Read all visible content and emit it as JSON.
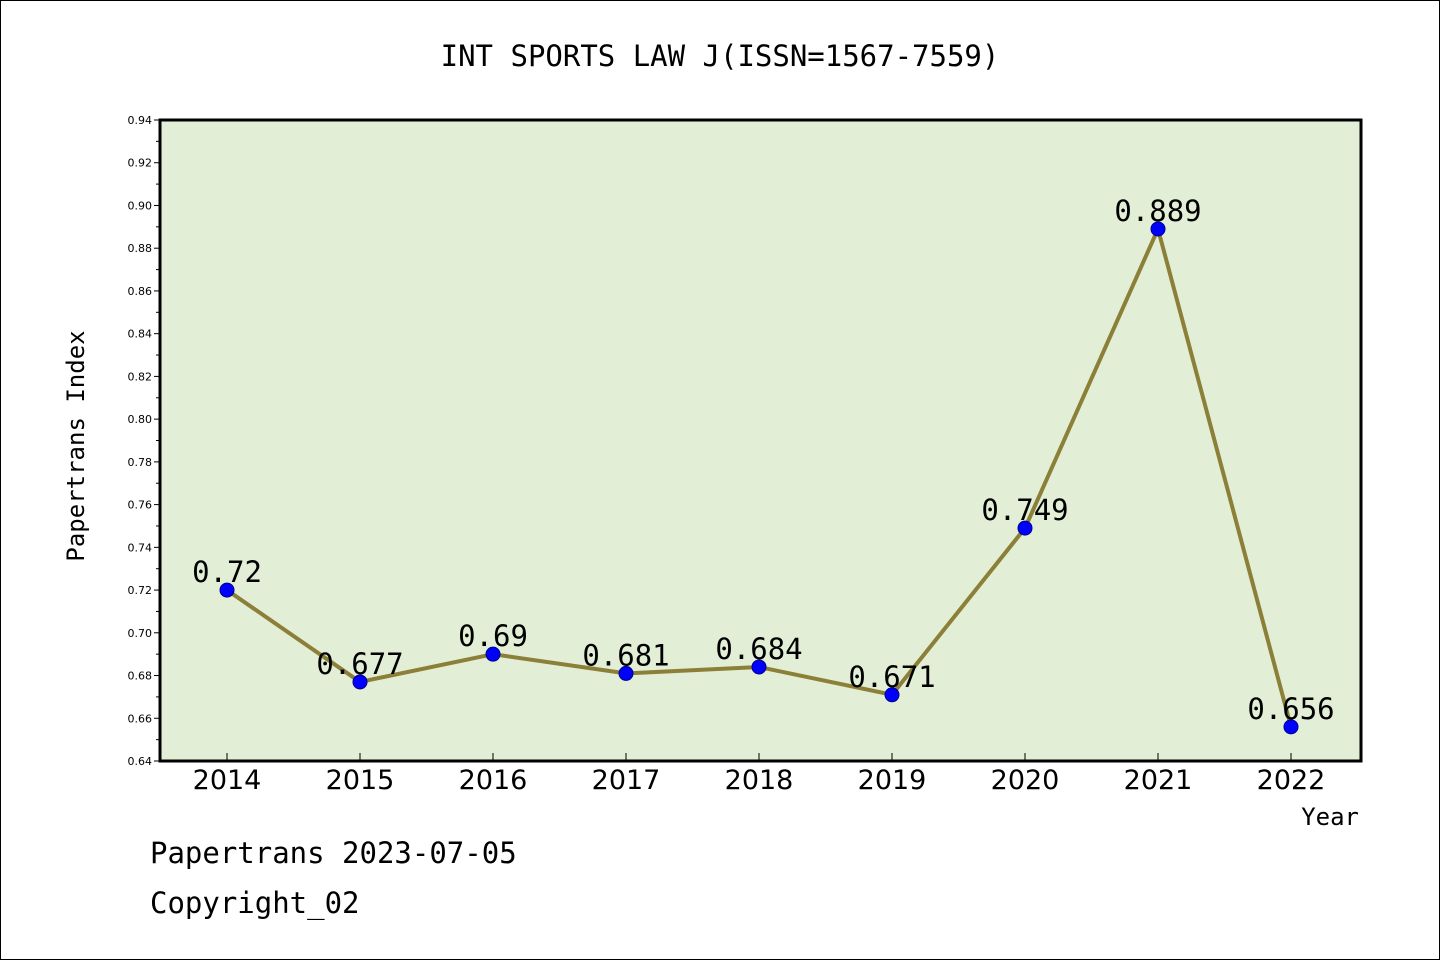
{
  "footer": {
    "line1": "Papertrans 2023-07-05",
    "line2": "Copyright_02"
  },
  "colors": {
    "plot_background": "#e2efd6",
    "line": "#8c7f38",
    "marker": "#0000ff",
    "marker_edge": "#00008b"
  },
  "chart_data": {
    "type": "line",
    "title": "INT SPORTS LAW J(ISSN=1567-7559)",
    "xlabel": "Year",
    "ylabel": "Papertrans Index",
    "categories": [
      "2014",
      "2015",
      "2016",
      "2017",
      "2018",
      "2019",
      "2020",
      "2021",
      "2022"
    ],
    "series": [
      {
        "values": [
          0.72,
          0.677,
          0.69,
          0.681,
          0.684,
          0.671,
          0.749,
          0.889,
          0.656
        ],
        "labels": [
          "0.72",
          "0.677",
          "0.69",
          "0.681",
          "0.684",
          "0.671",
          "0.749",
          "0.889",
          "0.656"
        ]
      }
    ],
    "ylim": [
      0.64,
      0.94
    ],
    "yticks": [
      "0.64",
      "0.66",
      "0.68",
      "0.70",
      "0.72",
      "0.74",
      "0.76",
      "0.78",
      "0.80",
      "0.82",
      "0.84",
      "0.86",
      "0.88",
      "0.90",
      "0.92",
      "0.94"
    ],
    "grid": false,
    "legend": "none"
  }
}
